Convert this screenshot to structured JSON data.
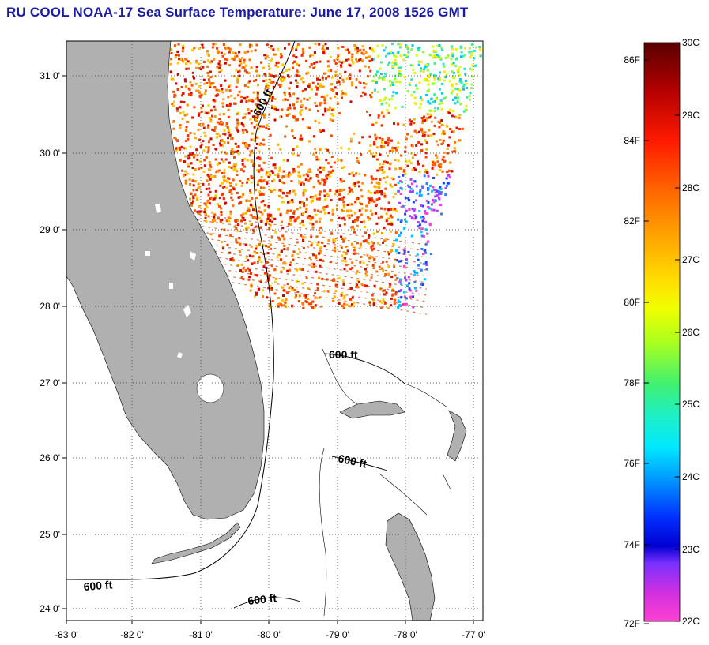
{
  "title": "RU COOL  NOAA-17  Sea Surface Temperature:  June 17, 2008 1526 GMT",
  "map": {
    "lat_labels": [
      "31 0'",
      "30 0'",
      "29 0'",
      "28 0'",
      "27 0'",
      "26 0'",
      "25 0'",
      "24 0'"
    ],
    "lon_labels": [
      "-83 0'",
      "-82 0'",
      "-81 0'",
      "-80 0'",
      "-79 0'",
      "-78 0'",
      "-77 0'"
    ],
    "contour_label": "600 ft",
    "colors": {
      "land": "#b0b0b0",
      "ocean": "#ffffff",
      "grid": "#333333"
    }
  },
  "colorbar": {
    "fahrenheit_labels": [
      "86F",
      "84F",
      "82F",
      "80F",
      "78F",
      "76F",
      "74F",
      "72F"
    ],
    "celsius_labels": [
      "30C",
      "29C",
      "28C",
      "27C",
      "26C",
      "25C",
      "24C",
      "23C",
      "22C"
    ],
    "range_c": [
      22,
      30
    ]
  }
}
